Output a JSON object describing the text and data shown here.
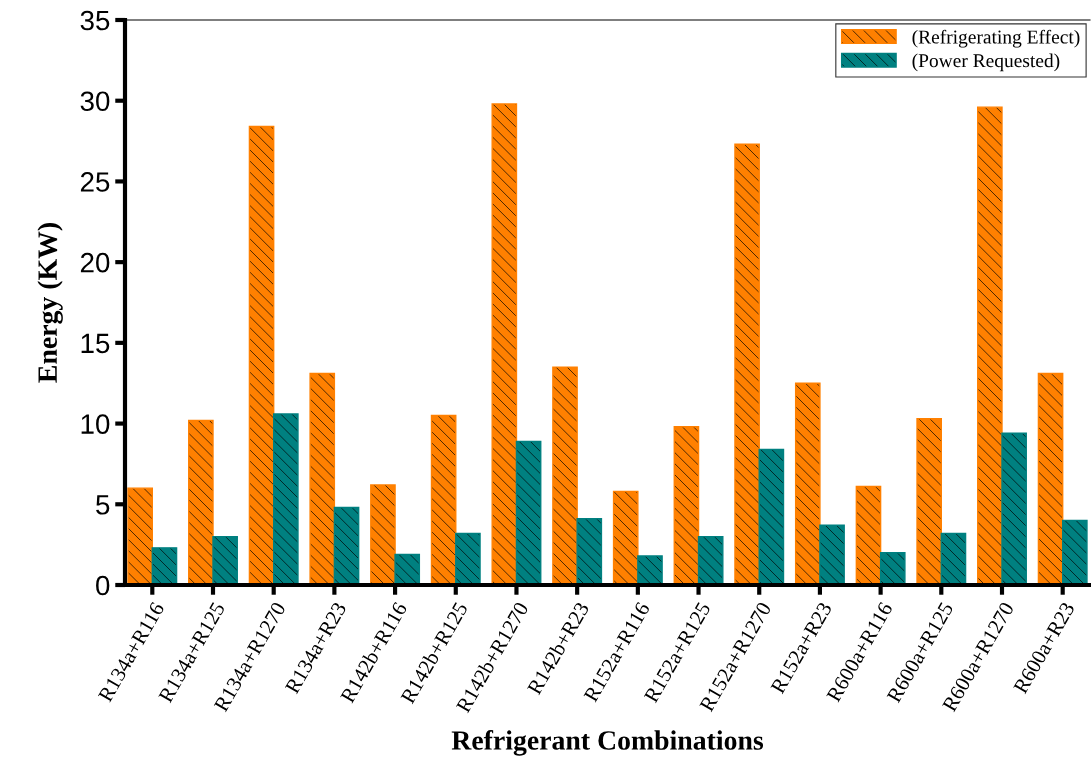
{
  "chart_data": {
    "type": "bar",
    "xlabel": "Refrigerant Combinations",
    "ylabel": "Energy (KW)",
    "categories": [
      "R134a+R116",
      "R134a+R125",
      "R134a+R1270",
      "R134a+R23",
      "R142b+R116",
      "R142b+R125",
      "R142b+R1270",
      "R142b+R23",
      "R152a+R116",
      "R152a+R125",
      "R152a+R1270",
      "R152a+R23",
      "R600a+R116",
      "R600a+R125",
      "R600a+R1270",
      "R600a+R23"
    ],
    "series": [
      {
        "name": "(Refrigerating Effect)",
        "color": "#ff8000",
        "values": [
          6.0,
          10.2,
          28.4,
          13.1,
          6.2,
          10.5,
          29.8,
          13.5,
          5.8,
          9.8,
          27.3,
          12.5,
          6.1,
          10.3,
          29.6,
          13.1
        ]
      },
      {
        "name": "(Power Requested)",
        "color": "#008080",
        "values": [
          2.3,
          3.0,
          10.6,
          4.8,
          1.9,
          3.2,
          8.9,
          4.1,
          1.8,
          3.0,
          8.4,
          3.7,
          2.0,
          3.2,
          9.4,
          4.0
        ]
      }
    ],
    "ylim": [
      0,
      35
    ],
    "yticks": [
      0,
      5,
      10,
      15,
      20,
      25,
      30,
      35
    ],
    "grid": false,
    "legend": "top right"
  }
}
